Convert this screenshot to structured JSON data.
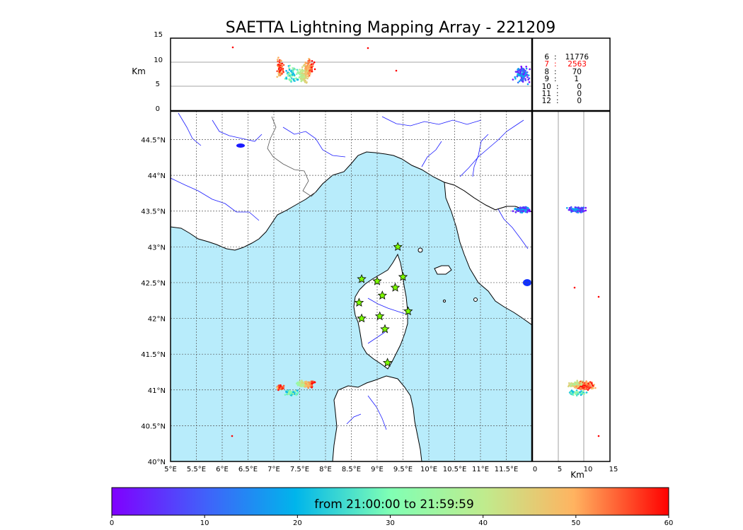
{
  "title": "SAETTA Lightning Mapping Array - 221209",
  "altitude_panel": {
    "ylabel": "Km",
    "yticks": [
      "15",
      "10",
      "5",
      "0"
    ]
  },
  "vertical_panel": {
    "xlabel": "Km",
    "xticks": [
      "0",
      "5",
      "10",
      "15"
    ]
  },
  "map": {
    "lon_ticks": [
      "5°E",
      "5.5°E",
      "6°E",
      "6.5°E",
      "7°E",
      "7.5°E",
      "8°E",
      "8.5°E",
      "9°E",
      "9.5°E",
      "10°E",
      "10.5°E",
      "11°E",
      "11.5°E"
    ],
    "lat_ticks": [
      "44.5°N",
      "44°N",
      "43.5°N",
      "43°N",
      "42.5°N",
      "42°N",
      "41.5°N",
      "41°N",
      "40.5°N",
      "40°N"
    ],
    "colors": {
      "sea": "#b8ecfb",
      "land": "#ffffff",
      "coast": "#000000",
      "rivers": "#1a1aff",
      "grid": "#555555",
      "station": "#7cfc00"
    }
  },
  "station_stats": [
    {
      "stations": "6",
      "sep": ":",
      "count": "11776",
      "color": "#000000"
    },
    {
      "stations": "7",
      "sep": ":",
      "count": "2563",
      "color": "#ff0000"
    },
    {
      "stations": "8",
      "sep": ":",
      "count": "70",
      "color": "#000000"
    },
    {
      "stations": "9",
      "sep": ":",
      "count": "1",
      "color": "#000000"
    },
    {
      "stations": "10",
      "sep": ":",
      "count": "0",
      "color": "#000000"
    },
    {
      "stations": "11",
      "sep": ":",
      "count": "0",
      "color": "#000000"
    },
    {
      "stations": "12",
      "sep": ":",
      "count": "0",
      "color": "#000000"
    }
  ],
  "colorbar": {
    "label": "from 21:00:00 to 21:59:59",
    "ticks": [
      "0",
      "10",
      "20",
      "30",
      "40",
      "50",
      "60"
    ],
    "colormap": "rainbow"
  }
}
